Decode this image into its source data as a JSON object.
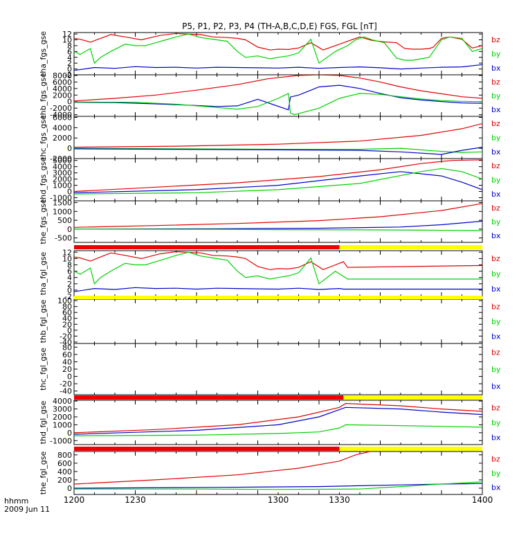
{
  "title": "P5, P1, P2, P3, P4 (TH-A,B,C,D,E) FGS, FGL [nT]",
  "colors": {
    "bx": "#0000c8",
    "by": "#00d000",
    "bz": "#e00000",
    "bar_red": "#ee0000",
    "bar_yellow": "#ffff00",
    "axis": "#000000"
  },
  "x_axis": {
    "labels": [
      "1200",
      "1230",
      "1300",
      "1330",
      "1400"
    ],
    "row1": "hhmm",
    "row2": "2009 Jun 11"
  },
  "legend_labels": [
    "bz",
    "by",
    "bx"
  ],
  "chart_data": [
    {
      "type": "line",
      "ylabel": "tha_fgs_gse",
      "yticks": [
        "-2",
        "0",
        "2",
        "4",
        "6",
        "8",
        "10",
        "12"
      ],
      "ylim": [
        -2,
        12.5
      ],
      "series": [
        {
          "name": "bz",
          "x": [
            1200,
            1203,
            1208,
            1213,
            1218,
            1225,
            1233,
            1242,
            1250,
            1255,
            1262,
            1268,
            1275,
            1280,
            1284,
            1290,
            1296,
            1300,
            1305,
            1310,
            1316,
            1322,
            1328,
            1334,
            1336,
            1340,
            1346,
            1352,
            1358,
            1362,
            1366,
            1370,
            1374,
            1376,
            1380,
            1384,
            1390,
            1395,
            1400
          ],
          "values": [
            10.5,
            10.2,
            9.2,
            10.5,
            11.8,
            11,
            10,
            11.5,
            12.2,
            12,
            11.8,
            11,
            10.8,
            10.5,
            10,
            7.5,
            6.5,
            6.8,
            6.7,
            7.2,
            9,
            6.5,
            8,
            9.5,
            10,
            11,
            9.8,
            9.3,
            9,
            7,
            6.8,
            6.8,
            7,
            7.5,
            10.5,
            11,
            10.2,
            7.2,
            8
          ]
        },
        {
          "name": "by",
          "x": [
            1200,
            1203,
            1208,
            1210,
            1213,
            1218,
            1225,
            1230,
            1235,
            1240,
            1245,
            1250,
            1256,
            1262,
            1270,
            1275,
            1280,
            1284,
            1290,
            1296,
            1300,
            1305,
            1310,
            1316,
            1320,
            1328,
            1334,
            1338,
            1342,
            1346,
            1352,
            1358,
            1362,
            1366,
            1370,
            1374,
            1376,
            1380,
            1384,
            1390,
            1395,
            1400
          ],
          "values": [
            6,
            5,
            7,
            2,
            4,
            6,
            8.5,
            8,
            8,
            9,
            10,
            11,
            12,
            10.8,
            10,
            9.5,
            6,
            4,
            4.5,
            3.5,
            4,
            4.5,
            5.5,
            10.2,
            2,
            6,
            8,
            10,
            11,
            10,
            9,
            3.7,
            3,
            3,
            3.5,
            4,
            6,
            10,
            11,
            10.5,
            6,
            7
          ]
        },
        {
          "name": "bx",
          "x": [
            1200,
            1210,
            1220,
            1230,
            1240,
            1250,
            1260,
            1270,
            1280,
            1290,
            1300,
            1310,
            1320,
            1330,
            1340,
            1350,
            1360,
            1370,
            1380,
            1390,
            1400
          ],
          "values": [
            -0.5,
            0.5,
            0.2,
            0.8,
            0.5,
            0.6,
            0.3,
            0.6,
            0.5,
            0.4,
            0.3,
            0.6,
            0.2,
            0.5,
            0.7,
            0.4,
            0,
            0.3,
            0.6,
            0.7,
            1.5
          ]
        }
      ]
    },
    {
      "type": "line",
      "ylabel": "thb_fgs_gse",
      "yticks": [
        "-4000",
        "-2000",
        "0",
        "2000",
        "4000",
        "6000",
        "8000"
      ],
      "ylim": [
        -4500,
        8200
      ],
      "series": [
        {
          "name": "bz",
          "x": [
            1200,
            1220,
            1240,
            1260,
            1280,
            1295,
            1310,
            1320,
            1330,
            1340,
            1350,
            1360,
            1370,
            1380,
            1390,
            1400
          ],
          "values": [
            200,
            1000,
            2000,
            3500,
            5200,
            7000,
            8000,
            8200,
            8000,
            7200,
            6000,
            4500,
            3300,
            2400,
            1500,
            1000
          ]
        },
        {
          "name": "bx",
          "x": [
            1200,
            1220,
            1240,
            1260,
            1270,
            1280,
            1290,
            1305,
            1306,
            1310,
            1320,
            1330,
            1340,
            1350,
            1360,
            1370,
            1380,
            1390,
            1400
          ],
          "values": [
            -200,
            -300,
            -700,
            -1200,
            -1500,
            -1300,
            700,
            -2500,
            1400,
            2000,
            4500,
            5000,
            4000,
            2500,
            1200,
            500,
            0,
            -400,
            -500
          ]
        },
        {
          "name": "by",
          "x": [
            1200,
            1230,
            1250,
            1270,
            1280,
            1290,
            1300,
            1305,
            1306,
            1308,
            1320,
            1330,
            1340,
            1350,
            1360,
            1370,
            1380,
            1390,
            1400
          ],
          "values": [
            -100,
            -200,
            -800,
            -1800,
            -2300,
            -1500,
            1000,
            2500,
            -3500,
            -4000,
            -2000,
            1000,
            2500,
            2200,
            1500,
            800,
            300,
            100,
            0
          ]
        }
      ]
    },
    {
      "type": "line",
      "ylabel": "thc_fgs_gse",
      "yticks": [
        "-2000",
        "0",
        "2000",
        "4000",
        "6000"
      ],
      "ylim": [
        -2000,
        6200
      ],
      "series": [
        {
          "name": "bz",
          "x": [
            1200,
            1250,
            1300,
            1340,
            1370,
            1390,
            1400
          ],
          "values": [
            200,
            400,
            800,
            1400,
            2500,
            3800,
            4800
          ]
        },
        {
          "name": "by",
          "x": [
            1200,
            1250,
            1300,
            1340,
            1360,
            1380,
            1390,
            1400
          ],
          "values": [
            0,
            -100,
            -200,
            -200,
            0,
            -600,
            -800,
            -700
          ]
        },
        {
          "name": "bx",
          "x": [
            1200,
            1250,
            1300,
            1340,
            1360,
            1380,
            1390,
            1400
          ],
          "values": [
            -100,
            -200,
            -300,
            -400,
            -700,
            -1200,
            -400,
            200
          ]
        }
      ]
    },
    {
      "type": "line",
      "ylabel": "thd_fgs_gse",
      "yticks": [
        "-1000",
        "0",
        "1000",
        "2000",
        "3000",
        "4000",
        "5000"
      ],
      "ylim": [
        -1500,
        5300
      ],
      "series": [
        {
          "name": "bz",
          "x": [
            1200,
            1240,
            1280,
            1320,
            1350,
            1370,
            1385,
            1400
          ],
          "values": [
            0,
            700,
            1400,
            2400,
            3500,
            4500,
            5000,
            5100
          ]
        },
        {
          "name": "bx",
          "x": [
            1200,
            1260,
            1300,
            1340,
            1360,
            1380,
            1390,
            1400
          ],
          "values": [
            -200,
            300,
            1000,
            2500,
            3200,
            2500,
            1500,
            300
          ]
        },
        {
          "name": "by",
          "x": [
            1200,
            1260,
            1300,
            1340,
            1370,
            1380,
            1390,
            1400
          ],
          "values": [
            -400,
            -200,
            300,
            1300,
            3200,
            3700,
            3200,
            2000
          ]
        }
      ]
    },
    {
      "type": "line",
      "ylabel": "the_fgs_gse",
      "yticks": [
        "-500",
        "0",
        "500",
        "1000",
        "1500"
      ],
      "ylim": [
        -750,
        1600
      ],
      "series": [
        {
          "name": "bz",
          "x": [
            1200,
            1240,
            1280,
            1320,
            1350,
            1380,
            1400
          ],
          "values": [
            100,
            200,
            320,
            480,
            700,
            1050,
            1450
          ]
        },
        {
          "name": "bx",
          "x": [
            1200,
            1270,
            1320,
            1360,
            1380,
            1400
          ],
          "values": [
            0,
            20,
            50,
            120,
            250,
            450
          ]
        },
        {
          "name": "by",
          "x": [
            1200,
            1270,
            1300,
            1340,
            1370,
            1400
          ],
          "values": [
            0,
            -10,
            -30,
            -40,
            -60,
            -80
          ]
        }
      ]
    },
    {
      "type": "line",
      "ylabel": "tha_fgl_gse",
      "yticks": [
        "-2",
        "0",
        "2",
        "4",
        "6",
        "8",
        "10",
        "12"
      ],
      "ylim": [
        -2,
        12.5
      ],
      "series": [
        {
          "name": "bz",
          "x": [
            1200,
            1203,
            1208,
            1213,
            1218,
            1225,
            1233,
            1242,
            1250,
            1255,
            1262,
            1268,
            1275,
            1280,
            1284,
            1290,
            1296,
            1300,
            1305,
            1310,
            1316,
            1322,
            1328,
            1332,
            1334,
            1400
          ],
          "values": [
            10.5,
            10.2,
            9.2,
            10.5,
            11.8,
            11,
            10,
            11.5,
            12.2,
            12,
            11.8,
            11,
            10.8,
            10.5,
            10,
            7.5,
            6.5,
            6.8,
            6.7,
            7.2,
            9,
            6.5,
            8,
            9,
            7.2,
            7.8
          ]
        },
        {
          "name": "by",
          "x": [
            1200,
            1203,
            1208,
            1210,
            1213,
            1218,
            1225,
            1230,
            1235,
            1240,
            1245,
            1250,
            1256,
            1262,
            1270,
            1275,
            1280,
            1284,
            1290,
            1296,
            1300,
            1305,
            1310,
            1316,
            1320,
            1328,
            1334,
            1400
          ],
          "values": [
            6,
            5,
            7,
            2,
            4,
            6,
            8.5,
            8,
            8,
            9,
            10,
            11,
            12,
            10.8,
            10,
            9.5,
            6,
            4,
            4.5,
            3.5,
            4,
            4.5,
            5.5,
            10.2,
            2,
            6,
            3.5,
            3.5
          ]
        },
        {
          "name": "bx",
          "x": [
            1200,
            1210,
            1220,
            1230,
            1240,
            1250,
            1260,
            1270,
            1280,
            1290,
            1300,
            1310,
            1320,
            1330,
            1332,
            1400
          ],
          "values": [
            -0.5,
            0.5,
            0.2,
            0.8,
            0.5,
            0.6,
            0.3,
            0.6,
            0.5,
            0.4,
            0.3,
            0.6,
            0.2,
            0.5,
            0.3,
            0.3
          ]
        }
      ]
    },
    {
      "type": "line",
      "ylabel": "thb_fgl_gse",
      "yticks": [
        "-40",
        "-20",
        "0",
        "20",
        "40",
        "60",
        "80",
        "100"
      ],
      "ylim": [
        -45,
        105
      ],
      "series": []
    },
    {
      "type": "line",
      "ylabel": "thc_fgl_gse",
      "yticks": [
        "-40",
        "-20",
        "0",
        "20",
        "40",
        "60",
        "80"
      ],
      "ylim": [
        -50,
        90
      ],
      "series": []
    },
    {
      "type": "line",
      "ylabel": "thd_fgl_gse",
      "yticks": [
        "-1000",
        "0",
        "1000",
        "2000",
        "3000",
        "4000"
      ],
      "ylim": [
        -1500,
        4100
      ],
      "series": [
        {
          "name": "bz",
          "x": [
            1200,
            1240,
            1280,
            1310,
            1330,
            1333,
            1360,
            1380,
            1400
          ],
          "values": [
            0,
            400,
            1000,
            2000,
            3200,
            3700,
            3400,
            3000,
            2700
          ]
        },
        {
          "name": "bx",
          "x": [
            1200,
            1260,
            1300,
            1320,
            1333,
            1360,
            1380,
            1400
          ],
          "values": [
            -200,
            300,
            1000,
            2000,
            3200,
            3000,
            2600,
            2300
          ]
        },
        {
          "name": "by",
          "x": [
            1200,
            1260,
            1300,
            1320,
            1330,
            1333,
            1360,
            1380,
            1400
          ],
          "values": [
            -400,
            -300,
            -100,
            100,
            600,
            1000,
            900,
            800,
            700
          ]
        }
      ]
    },
    {
      "type": "line",
      "ylabel": "the_fgl_gse",
      "yticks": [
        "0",
        "200",
        "400",
        "600",
        "800"
      ],
      "ylim": [
        -150,
        880
      ],
      "series": [
        {
          "name": "bz",
          "x": [
            1200,
            1240,
            1280,
            1310,
            1330,
            1338,
            1345
          ],
          "values": [
            100,
            200,
            320,
            480,
            650,
            800,
            880
          ]
        },
        {
          "name": "bx",
          "x": [
            1200,
            1270,
            1320,
            1360,
            1380,
            1400
          ],
          "values": [
            0,
            20,
            40,
            80,
            100,
            110
          ]
        },
        {
          "name": "by",
          "x": [
            1200,
            1260,
            1300,
            1340,
            1360,
            1380,
            1400
          ],
          "values": [
            -20,
            -20,
            -30,
            -20,
            40,
            100,
            150
          ]
        }
      ]
    }
  ],
  "status_bars": [
    {
      "segments": [
        {
          "color": "red",
          "from": 1200,
          "to": 1330
        },
        {
          "color": "yellow",
          "from": 1330,
          "to": 1400
        }
      ]
    },
    {
      "segments": [
        {
          "color": "yellow",
          "from": 1200,
          "to": 1400
        }
      ]
    },
    {
      "segments": [
        {
          "color": "red",
          "from": 1200,
          "to": 1332
        },
        {
          "color": "yellow",
          "from": 1332,
          "to": 1400
        }
      ]
    },
    {
      "segments": [
        {
          "color": "red",
          "from": 1200,
          "to": 1330
        },
        {
          "color": "yellow",
          "from": 1330,
          "to": 1400
        }
      ]
    }
  ]
}
